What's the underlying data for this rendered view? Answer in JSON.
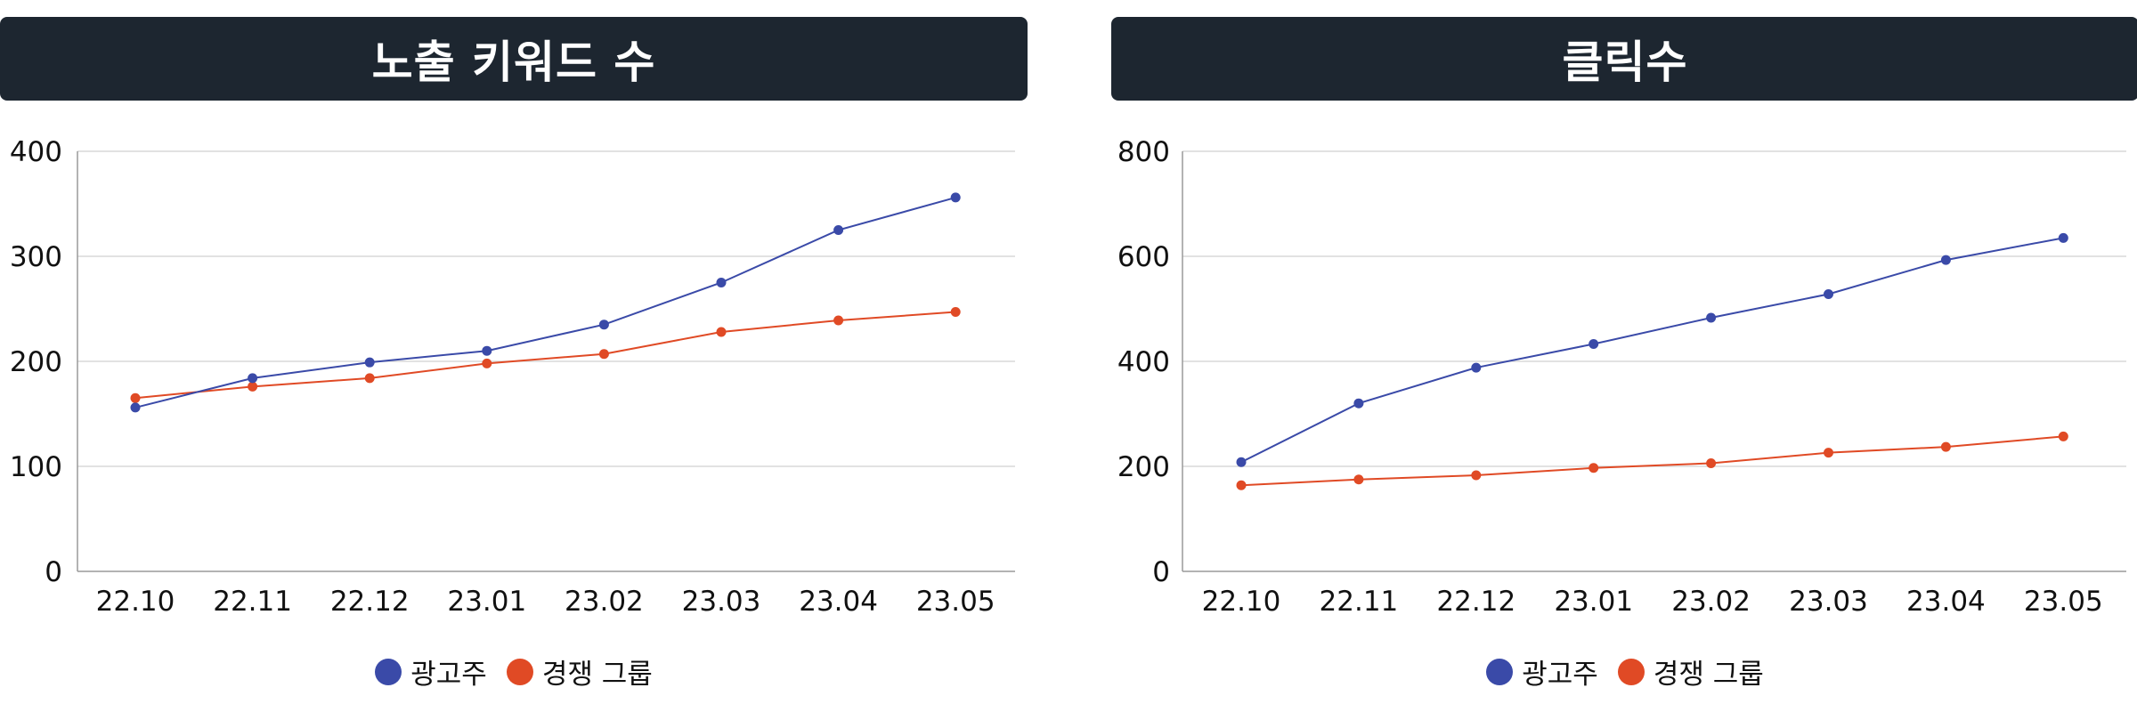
{
  "colors": {
    "advertiser": "#3a4aa8",
    "competitor": "#e04a25",
    "header_bg": "#1d2630"
  },
  "chart_data": [
    {
      "type": "line",
      "title": "노출 키워드 수",
      "xlabel": "",
      "ylabel": "",
      "categories": [
        "22.10",
        "22.11",
        "22.12",
        "23.01",
        "23.02",
        "23.03",
        "23.04",
        "23.05"
      ],
      "ylim": [
        0,
        400
      ],
      "yticks": [
        0,
        100,
        200,
        300,
        400
      ],
      "grid": true,
      "legend": "bottom-center",
      "series": [
        {
          "name": "광고주",
          "color": "#3a4aa8",
          "values": [
            156,
            184,
            199,
            210,
            235,
            275,
            325,
            356
          ]
        },
        {
          "name": "경쟁 그룹",
          "color": "#e04a25",
          "values": [
            165,
            176,
            184,
            198,
            207,
            228,
            239,
            247
          ]
        }
      ]
    },
    {
      "type": "line",
      "title": "클릭수",
      "xlabel": "",
      "ylabel": "",
      "categories": [
        "22.10",
        "22.11",
        "22.12",
        "23.01",
        "23.02",
        "23.03",
        "23.04",
        "23.05"
      ],
      "ylim": [
        0,
        800
      ],
      "yticks": [
        0,
        200,
        400,
        600,
        800
      ],
      "grid": true,
      "legend": "bottom-center",
      "series": [
        {
          "name": "광고주",
          "color": "#3a4aa8",
          "values": [
            208,
            320,
            388,
            433,
            483,
            528,
            593,
            635
          ]
        },
        {
          "name": "경쟁 그룹",
          "color": "#e04a25",
          "values": [
            164,
            175,
            183,
            197,
            206,
            226,
            237,
            257
          ]
        }
      ]
    }
  ]
}
